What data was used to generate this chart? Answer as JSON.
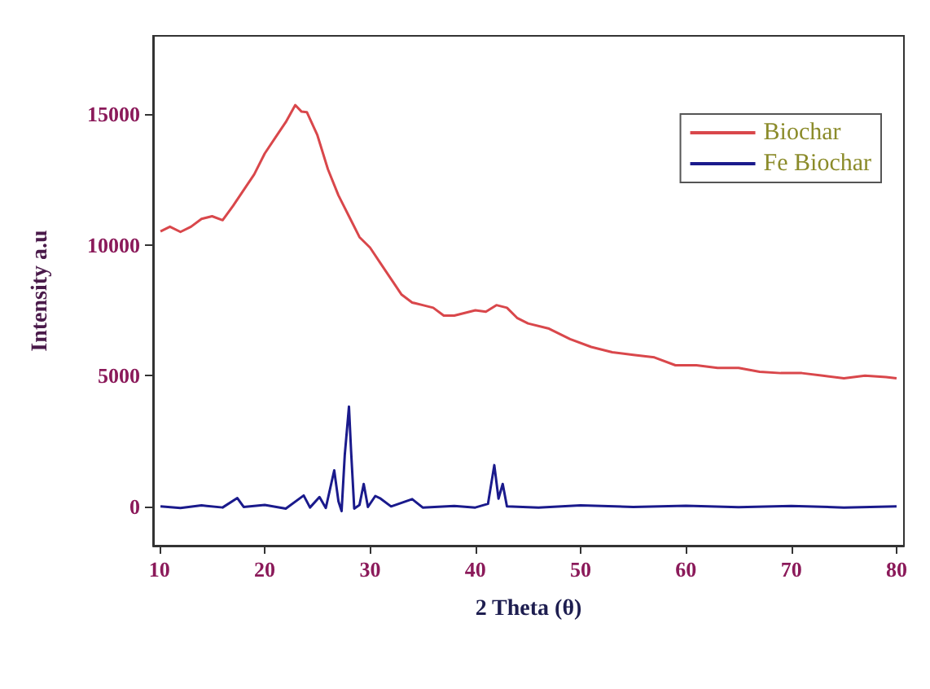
{
  "chart_data": {
    "type": "line",
    "xlabel": "2 Theta (θ)",
    "ylabel": "Intensity a.u",
    "xlim": [
      9.4,
      80.7
    ],
    "ylim": [
      -1500,
      18000
    ],
    "xticks": [
      10,
      20,
      30,
      40,
      50,
      60,
      70,
      80
    ],
    "yticks": [
      0,
      5000,
      10000,
      15000
    ],
    "grid": false,
    "legend": "top right",
    "marker": "none",
    "line_style": "solid",
    "series": [
      {
        "name": "Biochar",
        "color": "#d9474b",
        "x": [
          10.1,
          11,
          12,
          13,
          14,
          15,
          16,
          17,
          18,
          19,
          20,
          21,
          22,
          22.9,
          23.5,
          24,
          25,
          26,
          27,
          28,
          29,
          30,
          31,
          32,
          33,
          34,
          35,
          36,
          37,
          38,
          39,
          40,
          41,
          42,
          43,
          44,
          45,
          47,
          49,
          51,
          53,
          55,
          57,
          59,
          61,
          63,
          65,
          67,
          69,
          71,
          73,
          75,
          77,
          79,
          80
        ],
        "values": [
          10520,
          10700,
          10500,
          10700,
          11000,
          11100,
          10950,
          11500,
          12100,
          12700,
          13500,
          14100,
          14700,
          15350,
          15100,
          15080,
          14200,
          12900,
          11900,
          11100,
          10300,
          9900,
          9300,
          8700,
          8100,
          7800,
          7700,
          7600,
          7300,
          7300,
          7400,
          7500,
          7450,
          7700,
          7600,
          7200,
          7000,
          6800,
          6400,
          6100,
          5900,
          5800,
          5700,
          5400,
          5400,
          5300,
          5300,
          5150,
          5100,
          5100,
          5000,
          4900,
          5000,
          4950,
          4900
        ]
      },
      {
        "name": "Fe Biochar",
        "color": "#1a1a8c",
        "x": [
          10.1,
          12,
          14,
          16,
          17.4,
          18,
          20,
          22,
          23.7,
          24.3,
          25.2,
          25.8,
          26.6,
          27.0,
          27.3,
          27.6,
          28.0,
          28.2,
          28.5,
          29.0,
          29.4,
          29.8,
          30.5,
          31,
          32,
          34,
          35,
          38,
          40,
          41.2,
          41.8,
          42.2,
          42.6,
          43,
          46,
          50,
          55,
          60,
          65,
          70,
          75,
          80
        ],
        "values": [
          0,
          -60,
          40,
          -40,
          320,
          -20,
          60,
          -80,
          420,
          -40,
          360,
          -60,
          1380,
          200,
          -180,
          1960,
          3820,
          2120,
          -80,
          60,
          860,
          -20,
          400,
          300,
          0,
          280,
          -40,
          20,
          -40,
          100,
          1580,
          300,
          860,
          0,
          -40,
          40,
          -20,
          30,
          -30,
          20,
          -40,
          0
        ]
      }
    ]
  }
}
